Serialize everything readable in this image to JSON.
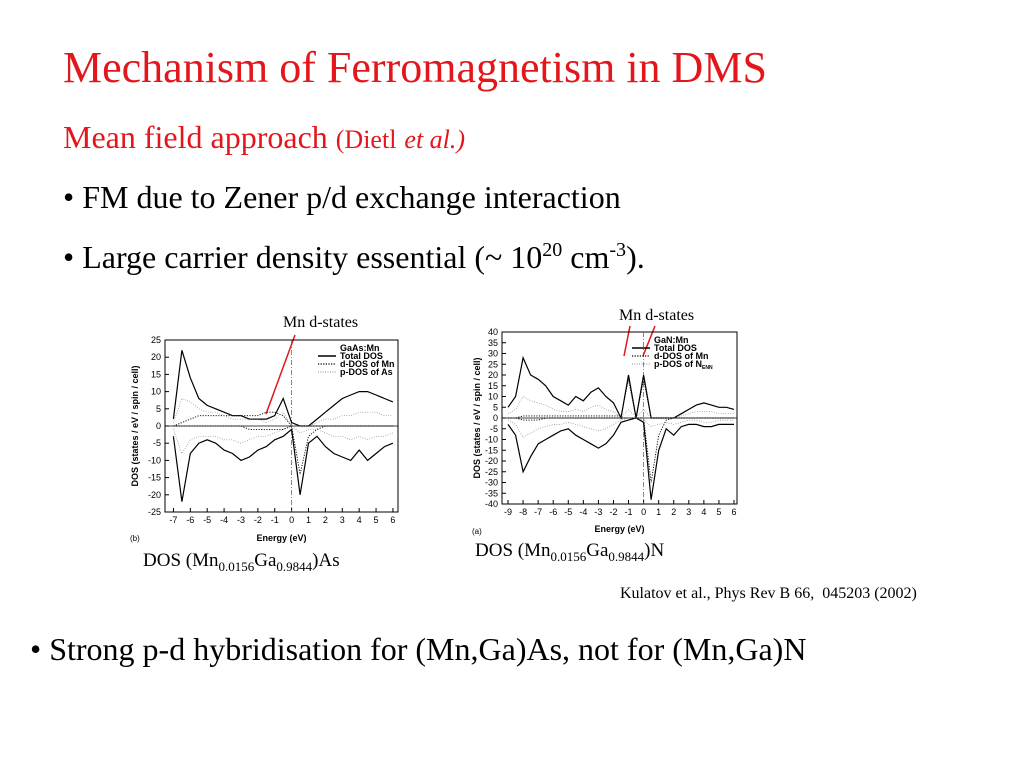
{
  "title": "Mechanism of Ferromagnetism in DMS",
  "subtitle": {
    "text": "Mean field approach",
    "ref": "(Dietl",
    "ref_italic": "et al.)"
  },
  "bullets": [
    {
      "parts": [
        "• FM due to Zener p/d exchange interaction"
      ]
    },
    {
      "parts": [
        "• Large carrier density essential (~ 10",
        "20",
        " cm",
        "-3",
        ")."
      ]
    }
  ],
  "citation": "Kulatov et al., Phys Rev B 66,  045203 (2002)",
  "conclusion": "• Strong p-d hybridisation for (Mn,Ga)As, not for (Mn,Ga)N",
  "chart_data": [
    {
      "type": "line",
      "panel": "(b)",
      "annotation": "Mn d-states",
      "caption": [
        "DOS (Mn",
        "0.0156",
        "Ga",
        "0.9844",
        ")As"
      ],
      "xlabel": "Energy (eV)",
      "ylabel": "DOS (states / eV / spin / cell)",
      "legend_title": "GaAs:Mn",
      "xlim": [
        -7.5,
        6.3
      ],
      "xticks": [
        -7,
        -6,
        -5,
        -4,
        -3,
        -2,
        -1,
        0,
        1,
        2,
        3,
        4,
        5,
        6
      ],
      "ylim": [
        -25,
        25
      ],
      "yticks": [
        -25,
        -20,
        -15,
        -10,
        -5,
        0,
        5,
        10,
        15,
        20,
        25
      ],
      "x": [
        -7,
        -6.5,
        -6,
        -5.5,
        -5,
        -4.5,
        -4,
        -3.5,
        -3,
        -2.5,
        -2,
        -1.5,
        -1,
        -0.5,
        0,
        0.5,
        1,
        1.5,
        2,
        2.5,
        3,
        3.5,
        4,
        4.5,
        5,
        5.5,
        6
      ],
      "series": [
        {
          "name": "Total DOS",
          "color": "#000000",
          "values": [
            2,
            22,
            14,
            8,
            6,
            5,
            4,
            3,
            3,
            2,
            2,
            2,
            3,
            8,
            1,
            0,
            0,
            2,
            4,
            6,
            8,
            9,
            10,
            10,
            9,
            8,
            7
          ],
          "values_down": [
            -3,
            -22,
            -8,
            -5,
            -4,
            -5,
            -7,
            -8,
            -10,
            -9,
            -7,
            -6,
            -4,
            -3,
            -1,
            -20,
            -5,
            -3,
            -6,
            -8,
            -9,
            -10,
            -7,
            -10,
            -8,
            -6,
            -5
          ]
        },
        {
          "name": "d-DOS of Mn",
          "color": "#000000",
          "values": [
            0,
            1,
            2,
            3,
            3,
            3,
            3,
            3,
            3,
            3,
            3,
            4,
            4,
            3,
            0,
            0,
            0,
            0,
            0,
            0,
            0,
            0,
            0,
            0,
            0,
            0,
            0
          ],
          "values_down": [
            0,
            0,
            0,
            0,
            0,
            0,
            0,
            0,
            0,
            -1,
            -1,
            -1,
            -1,
            -1,
            0,
            -14,
            -3,
            -1,
            0,
            0,
            0,
            0,
            0,
            0,
            0,
            0,
            0
          ]
        },
        {
          "name": "p-DOS of As",
          "color": "#777777",
          "values": [
            1,
            8,
            7,
            5,
            4,
            4,
            3,
            2,
            2,
            2,
            2,
            1,
            2,
            4,
            0,
            0,
            0,
            1,
            2,
            2,
            3,
            3,
            4,
            4,
            4,
            3,
            3
          ],
          "values_down": [
            -1,
            -8,
            -4,
            -3,
            -3,
            -3,
            -4,
            -4,
            -5,
            -4,
            -3,
            -3,
            -2,
            -1,
            0,
            -2,
            -1,
            -1,
            -2,
            -3,
            -3,
            -4,
            -3,
            -4,
            -3,
            -3,
            -2
          ]
        }
      ]
    },
    {
      "type": "line",
      "panel": "(a)",
      "annotation": "Mn d-states",
      "caption": [
        "DOS (Mn",
        "0.0156",
        "Ga",
        "0.9844",
        ")N"
      ],
      "xlabel": "Energy (eV)",
      "ylabel": "DOS (states / eV / spin / cell)",
      "legend_title": "GaN:Mn",
      "xlim": [
        -9.4,
        6.2
      ],
      "xticks": [
        -9,
        -8,
        -7,
        -6,
        -5,
        -4,
        -3,
        -2,
        -1,
        0,
        1,
        2,
        3,
        4,
        5,
        6
      ],
      "ylim": [
        -40,
        40
      ],
      "yticks": [
        -40,
        -35,
        -30,
        -25,
        -20,
        -15,
        -10,
        -5,
        0,
        5,
        10,
        15,
        20,
        25,
        30,
        35,
        40
      ],
      "x": [
        -9,
        -8.5,
        -8,
        -7.5,
        -7,
        -6.5,
        -6,
        -5.5,
        -5,
        -4.5,
        -4,
        -3.5,
        -3,
        -2.5,
        -2,
        -1.5,
        -1,
        -0.5,
        0,
        0.5,
        1,
        1.5,
        2,
        2.5,
        3,
        3.5,
        4,
        4.5,
        5,
        5.5,
        6
      ],
      "series": [
        {
          "name": "Total DOS",
          "color": "#000000",
          "values": [
            5,
            10,
            28,
            20,
            18,
            15,
            10,
            8,
            6,
            10,
            8,
            12,
            14,
            10,
            7,
            0,
            20,
            0,
            20,
            0,
            0,
            0,
            0,
            2,
            4,
            6,
            7,
            6,
            5,
            5,
            4
          ],
          "values_down": [
            -3,
            -8,
            -25,
            -18,
            -12,
            -10,
            -8,
            -6,
            -5,
            -8,
            -10,
            -12,
            -14,
            -12,
            -8,
            -2,
            -1,
            0,
            -2,
            -38,
            -15,
            -5,
            -8,
            -4,
            -3,
            -3,
            -4,
            -4,
            -3,
            -3,
            -3
          ]
        },
        {
          "name": "d-DOS of Mn",
          "color": "#000000",
          "values": [
            0,
            0,
            1,
            1,
            1,
            1,
            1,
            1,
            1,
            1,
            1,
            1,
            1,
            1,
            1,
            1,
            18,
            0,
            18,
            0,
            0,
            0,
            0,
            0,
            0,
            0,
            0,
            0,
            0,
            0,
            0
          ],
          "values_down": [
            0,
            0,
            -1,
            -1,
            -1,
            0,
            0,
            0,
            0,
            0,
            0,
            0,
            0,
            0,
            0,
            0,
            0,
            0,
            0,
            -30,
            -8,
            -1,
            0,
            0,
            0,
            0,
            0,
            0,
            0,
            0,
            0
          ]
        },
        {
          "name": "p-DOS of N",
          "name_sub": "ENN",
          "color": "#777777",
          "values": [
            2,
            4,
            10,
            8,
            7,
            6,
            4,
            3,
            3,
            4,
            3,
            5,
            6,
            4,
            3,
            0,
            4,
            0,
            4,
            0,
            0,
            0,
            0,
            1,
            2,
            3,
            3,
            3,
            2,
            2,
            2
          ],
          "values_down": [
            -1,
            -3,
            -9,
            -7,
            -5,
            -4,
            -3,
            -3,
            -2,
            -3,
            -4,
            -5,
            -6,
            -5,
            -3,
            -1,
            0,
            0,
            -1,
            -4,
            -3,
            -2,
            -3,
            -2,
            -1,
            -1,
            -2,
            -2,
            -1,
            -1,
            -1
          ]
        }
      ]
    }
  ]
}
